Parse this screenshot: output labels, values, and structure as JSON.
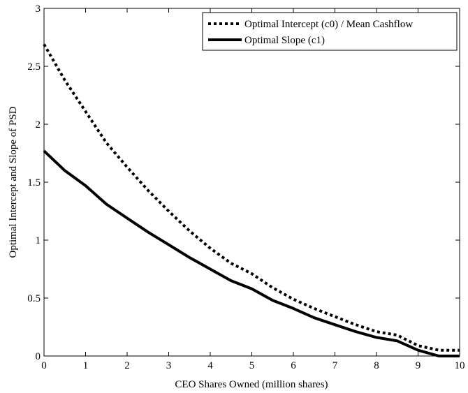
{
  "chart_data": {
    "type": "line",
    "title": "",
    "xlabel": "CEO Shares Owned (million shares)",
    "ylabel": "Optimal Intercept and Slope of PSD",
    "xlim": [
      0,
      10
    ],
    "ylim": [
      0,
      3
    ],
    "xticks": [
      0,
      1,
      2,
      3,
      4,
      5,
      6,
      7,
      8,
      9,
      10
    ],
    "xtick_labels": [
      "0",
      "1",
      "2",
      "3",
      "4",
      "5",
      "6",
      "7",
      "8",
      "9",
      "10"
    ],
    "yticks": [
      0,
      0.5,
      1,
      1.5,
      2,
      2.5,
      3
    ],
    "ytick_labels": [
      "0",
      "0.5",
      "1",
      "1.5",
      "2",
      "2.5",
      "3"
    ],
    "grid": false,
    "legend_position": "top-right",
    "series": [
      {
        "name": "Optimal Intercept (c0) / Mean Cashflow",
        "style": "dotted",
        "color": "#000000",
        "x": [
          0,
          0.5,
          1,
          1.5,
          2,
          2.5,
          3,
          3.5,
          4,
          4.5,
          5,
          5.5,
          6,
          6.5,
          7,
          7.5,
          8,
          8.5,
          9,
          9.5,
          10
        ],
        "y": [
          2.69,
          2.38,
          2.11,
          1.84,
          1.63,
          1.43,
          1.25,
          1.08,
          0.93,
          0.8,
          0.71,
          0.59,
          0.49,
          0.41,
          0.34,
          0.27,
          0.21,
          0.18,
          0.09,
          0.05,
          0.05
        ]
      },
      {
        "name": "Optimal Slope (c1)",
        "style": "solid",
        "color": "#000000",
        "x": [
          0,
          0.5,
          1,
          1.5,
          2,
          2.5,
          3,
          3.5,
          4,
          4.5,
          5,
          5.5,
          6,
          6.5,
          7,
          7.5,
          8,
          8.5,
          9,
          9.5,
          10
        ],
        "y": [
          1.77,
          1.6,
          1.47,
          1.31,
          1.19,
          1.07,
          0.96,
          0.85,
          0.75,
          0.65,
          0.58,
          0.48,
          0.41,
          0.33,
          0.27,
          0.21,
          0.16,
          0.13,
          0.05,
          0.0,
          0.0
        ]
      }
    ]
  }
}
